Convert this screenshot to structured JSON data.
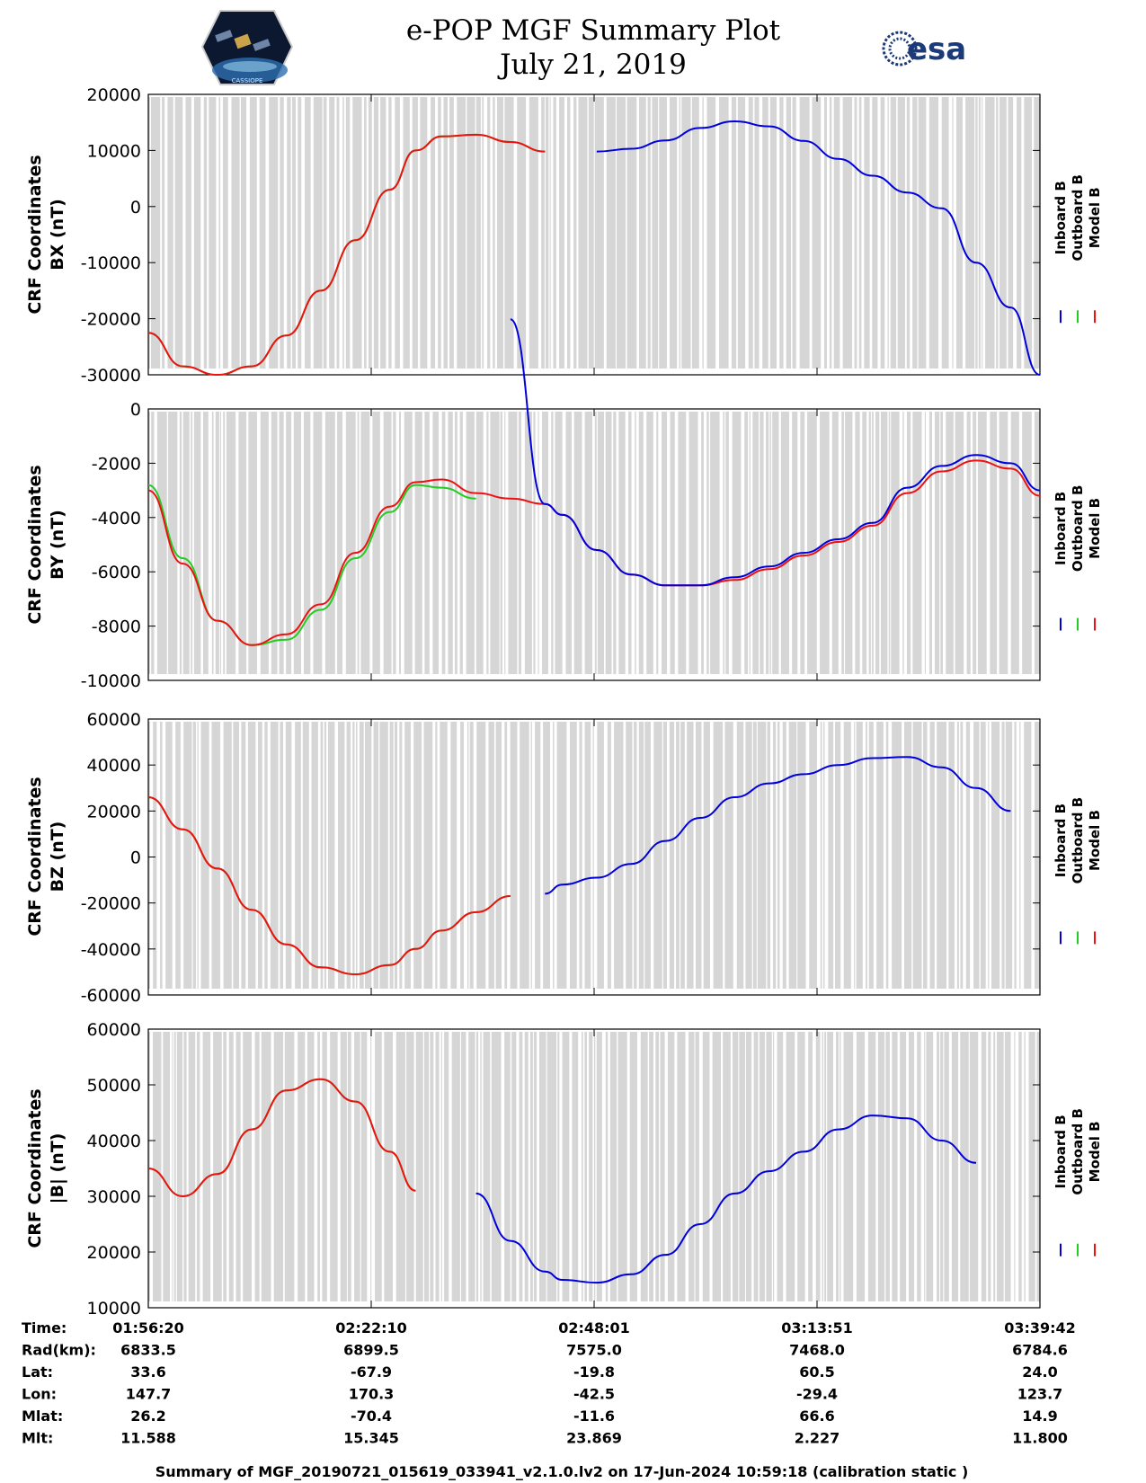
{
  "header": {
    "title_line1": "e-POP MGF Summary Plot",
    "title_line2": "July 21, 2019",
    "left_logo_caption": "CASSIOPE",
    "right_logo_text": "esa"
  },
  "legend": {
    "entries": [
      {
        "name": "Inboard B",
        "color": "#0000dd"
      },
      {
        "name": "Outboard B",
        "color": "#00cc00"
      },
      {
        "name": "Model B",
        "color": "#ee0000"
      }
    ]
  },
  "colors": {
    "inboard": "#0000dd",
    "outboard": "#22cc22",
    "model": "#ee1111",
    "gap_shading": "#d6d6d6"
  },
  "chart_data": [
    {
      "type": "line",
      "ylabel_line1": "CRF Coordinates",
      "ylabel_line2": "BX (nT)",
      "ylim": [
        -30000,
        20000
      ],
      "yticks": [
        -30000,
        -20000,
        -10000,
        0,
        10000,
        20000
      ],
      "ytick_labels": [
        "-30000",
        "-20000",
        "-10000",
        "0",
        "10000",
        "20000"
      ],
      "x_minutes": [
        0,
        4,
        8,
        12,
        16,
        20,
        24,
        28,
        31,
        34,
        38,
        42,
        46,
        48,
        52,
        56,
        60,
        64,
        68,
        72,
        76,
        80,
        84,
        88,
        92,
        96,
        100,
        103.4
      ],
      "series": [
        {
          "name": "Inboard B",
          "y": [
            null,
            null,
            null,
            null,
            null,
            null,
            null,
            null,
            null,
            null,
            null,
            null,
            null,
            null,
            9800,
            10300,
            11800,
            14000,
            15200,
            14300,
            11700,
            8500,
            5500,
            2500,
            -300,
            -10000,
            -18000,
            -30000
          ]
        },
        {
          "name": "Outboard B",
          "y": [
            -22500,
            -28500,
            -30000,
            -28500,
            -23000,
            -15000,
            -6000,
            3000,
            10000,
            12500,
            12800,
            11500,
            9800,
            null,
            null,
            null,
            null,
            null,
            null,
            null,
            null,
            null,
            null,
            null,
            null,
            null,
            null,
            null
          ]
        },
        {
          "name": "Model B",
          "y": [
            -22500,
            -28500,
            -30000,
            -28500,
            -23000,
            -15000,
            -6000,
            3000,
            10000,
            12500,
            12800,
            11500,
            9800,
            null,
            null,
            null,
            null,
            null,
            null,
            null,
            null,
            null,
            null,
            null,
            null,
            null,
            null,
            null
          ]
        }
      ]
    },
    {
      "type": "line",
      "ylabel_line1": "CRF Coordinates",
      "ylabel_line2": "BY (nT)",
      "ylim": [
        -10000,
        0
      ],
      "yticks": [
        -10000,
        -8000,
        -6000,
        -4000,
        -2000,
        0
      ],
      "ytick_labels": [
        "-10000",
        "-8000",
        "-6000",
        "-4000",
        "-2000",
        "0"
      ],
      "x_minutes": [
        0,
        4,
        8,
        12,
        16,
        20,
        24,
        28,
        31,
        34,
        38,
        42,
        46,
        48,
        52,
        56,
        60,
        64,
        68,
        72,
        76,
        80,
        84,
        88,
        92,
        96,
        100,
        103.4
      ],
      "series": [
        {
          "name": "Inboard B",
          "y": [
            null,
            null,
            null,
            null,
            null,
            null,
            null,
            null,
            null,
            null,
            null,
            3300,
            -3500,
            -3900,
            -5200,
            -6100,
            -6500,
            -6500,
            -6200,
            -5800,
            -5300,
            -4800,
            -4200,
            -2900,
            -2100,
            -1700,
            -2000,
            -3000
          ]
        },
        {
          "name": "Outboard B",
          "y": [
            -2800,
            -5500,
            -7800,
            -8700,
            -8500,
            -7400,
            -5500,
            -3800,
            -2800,
            -2900,
            -3300,
            null,
            null,
            null,
            null,
            null,
            null,
            null,
            null,
            null,
            null,
            null,
            null,
            null,
            null,
            null,
            null,
            null
          ]
        },
        {
          "name": "Model B",
          "y": [
            -3000,
            -5700,
            -7800,
            -8700,
            -8300,
            -7200,
            -5300,
            -3600,
            -2700,
            -2600,
            -3100,
            -3300,
            -3500,
            -3900,
            -5200,
            -6100,
            -6500,
            -6500,
            -6300,
            -5900,
            -5400,
            -4900,
            -4300,
            -3100,
            -2300,
            -1900,
            -2200,
            -3200
          ]
        }
      ]
    },
    {
      "type": "line",
      "ylabel_line1": "CRF Coordinates",
      "ylabel_line2": "BZ (nT)",
      "ylim": [
        -60000,
        60000
      ],
      "yticks": [
        -60000,
        -40000,
        -20000,
        0,
        20000,
        40000,
        60000
      ],
      "ytick_labels": [
        "-60000",
        "-40000",
        "-20000",
        "0",
        "20000",
        "40000",
        "60000"
      ],
      "x_minutes": [
        0,
        4,
        8,
        12,
        16,
        20,
        24,
        28,
        31,
        34,
        38,
        42,
        46,
        48,
        52,
        56,
        60,
        64,
        68,
        72,
        76,
        80,
        84,
        88,
        92,
        96,
        100,
        103.4
      ],
      "series": [
        {
          "name": "Inboard B",
          "y": [
            null,
            null,
            null,
            null,
            null,
            null,
            null,
            null,
            null,
            null,
            null,
            null,
            -16000,
            -12000,
            -9000,
            -3000,
            7000,
            17000,
            26000,
            32000,
            36000,
            40000,
            43000,
            43500,
            39000,
            30000,
            20000,
            null
          ]
        },
        {
          "name": "Outboard B",
          "y": [
            26000,
            12000,
            -5000,
            -23000,
            -38000,
            -48000,
            -51000,
            -47000,
            -40000,
            -32000,
            -24000,
            -17000,
            null,
            null,
            null,
            null,
            null,
            null,
            null,
            null,
            null,
            null,
            null,
            null,
            null,
            null,
            null,
            null
          ]
        },
        {
          "name": "Model B",
          "y": [
            26000,
            12000,
            -5000,
            -23000,
            -38000,
            -48000,
            -51000,
            -47000,
            -40000,
            -32000,
            -24000,
            -17000,
            null,
            null,
            null,
            null,
            null,
            null,
            null,
            null,
            null,
            null,
            null,
            null,
            null,
            null,
            null,
            null
          ]
        }
      ]
    },
    {
      "type": "line",
      "ylabel_line1": "CRF Coordinates",
      "ylabel_line2": "|B| (nT)",
      "ylim": [
        10000,
        60000
      ],
      "yticks": [
        10000,
        20000,
        30000,
        40000,
        50000,
        60000
      ],
      "ytick_labels": [
        "10000",
        "20000",
        "30000",
        "40000",
        "50000",
        "60000"
      ],
      "x_minutes": [
        0,
        4,
        8,
        12,
        16,
        20,
        24,
        28,
        31,
        34,
        38,
        42,
        46,
        48,
        52,
        56,
        60,
        64,
        68,
        72,
        76,
        80,
        84,
        88,
        92,
        96,
        100,
        103.4
      ],
      "series": [
        {
          "name": "Inboard B",
          "y": [
            null,
            null,
            null,
            null,
            null,
            null,
            null,
            null,
            null,
            null,
            30500,
            22000,
            16500,
            15000,
            14500,
            16000,
            19500,
            25000,
            30500,
            34500,
            38000,
            42000,
            44500,
            44000,
            40000,
            36000,
            null,
            null
          ]
        },
        {
          "name": "Outboard B",
          "y": [
            35000,
            30000,
            34000,
            42000,
            49000,
            51000,
            47000,
            38000,
            31000,
            null,
            null,
            null,
            null,
            null,
            null,
            null,
            null,
            null,
            null,
            null,
            null,
            null,
            null,
            null,
            null,
            null,
            null,
            null
          ]
        },
        {
          "name": "Model B",
          "y": [
            35000,
            30000,
            34000,
            42000,
            49000,
            51000,
            47000,
            38000,
            31000,
            null,
            null,
            null,
            null,
            null,
            null,
            null,
            null,
            null,
            null,
            null,
            null,
            null,
            null,
            null,
            null,
            null,
            null,
            null
          ]
        }
      ]
    }
  ],
  "table": {
    "row_labels": [
      "Time:",
      "Rad(km):",
      "Lat:",
      "Lon:",
      "Mlat:",
      "Mlt:"
    ],
    "columns": [
      [
        "01:56:20",
        "6833.5",
        "33.6",
        "147.7",
        "26.2",
        "11.588"
      ],
      [
        "02:22:10",
        "6899.5",
        "-67.9",
        "170.3",
        "-70.4",
        "15.345"
      ],
      [
        "02:48:01",
        "7575.0",
        "-19.8",
        "-42.5",
        "-11.6",
        "23.869"
      ],
      [
        "03:13:51",
        "7468.0",
        "60.5",
        "-29.4",
        "66.6",
        "2.227"
      ],
      [
        "03:39:42",
        "6784.6",
        "24.0",
        "123.7",
        "14.9",
        "11.800"
      ]
    ]
  },
  "footer": {
    "text": "Summary of MGF_20190721_015619_033941_v2.1.0.lv2 on 17-Jun-2024 10:59:18 (calibration static )"
  }
}
